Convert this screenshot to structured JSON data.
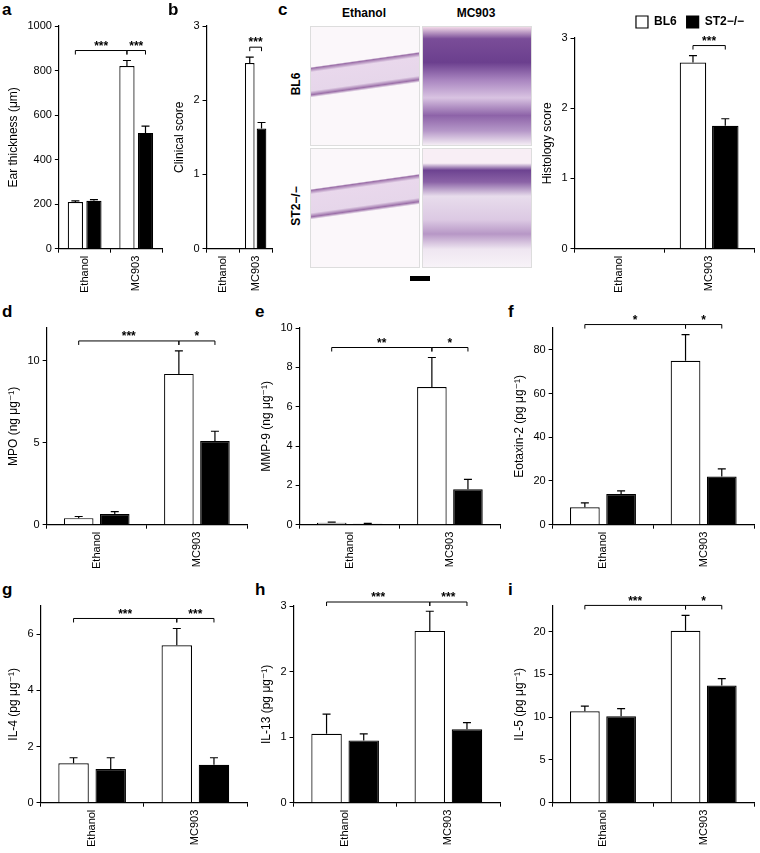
{
  "chart_data": [
    {
      "type": "bar",
      "panel": "a",
      "ylabel": "Ear thickness (μm)",
      "categories": [
        "Ethanol",
        "MC903"
      ],
      "series": [
        {
          "name": "BL6",
          "color": "#ffffff",
          "values": [
            210,
            820
          ],
          "errors": [
            5,
            25
          ]
        },
        {
          "name": "ST2−/−",
          "color": "#000000",
          "values": [
            215,
            520
          ],
          "errors": [
            5,
            30
          ]
        }
      ],
      "ylim": [
        0,
        1000
      ],
      "yticks": [
        0,
        200,
        400,
        600,
        800,
        1000
      ],
      "grid": false,
      "significance": [
        {
          "from": [
            "Ethanol",
            "BL6"
          ],
          "to": [
            "MC903",
            "BL6"
          ],
          "label": "***"
        },
        {
          "from": [
            "MC903",
            "BL6"
          ],
          "to": [
            "MC903",
            "ST2−/−"
          ],
          "label": "***"
        }
      ]
    },
    {
      "type": "bar",
      "panel": "b",
      "ylabel": "Clinical score",
      "categories": [
        "Ethanol",
        "MC903"
      ],
      "series": [
        {
          "name": "BL6",
          "color": "#ffffff",
          "values": [
            0,
            2.5
          ],
          "errors": [
            0,
            0.08
          ]
        },
        {
          "name": "ST2−/−",
          "color": "#000000",
          "values": [
            0,
            1.62
          ],
          "errors": [
            0,
            0.08
          ]
        }
      ],
      "ylim": [
        0,
        3
      ],
      "yticks": [
        0,
        1,
        2,
        3
      ],
      "grid": false,
      "significance": [
        {
          "from": [
            "MC903",
            "BL6"
          ],
          "to": [
            "MC903",
            "ST2−/−"
          ],
          "label": "***"
        }
      ]
    },
    {
      "type": "bar",
      "ylabel": "Histology score",
      "categories": [
        "Ethanol",
        "MC903"
      ],
      "legend": "top-right",
      "series": [
        {
          "name": "BL6",
          "color": "#ffffff",
          "values": [
            0,
            2.65
          ],
          "errors": [
            0,
            0.1
          ]
        },
        {
          "name": "ST2−/−",
          "color": "#000000",
          "values": [
            0,
            1.75
          ],
          "errors": [
            0,
            0.1
          ]
        }
      ],
      "ylim": [
        0,
        3
      ],
      "yticks": [
        0,
        1,
        2,
        3
      ],
      "grid": false,
      "significance": [
        {
          "from": [
            "MC903",
            "BL6"
          ],
          "to": [
            "MC903",
            "ST2−/−"
          ],
          "label": "***"
        }
      ]
    },
    {
      "type": "bar",
      "panel": "d",
      "ylabel": "MPO (ng μg⁻¹)",
      "categories": [
        "Ethanol",
        "MC903"
      ],
      "series": [
        {
          "name": "BL6",
          "color": "#ffffff",
          "values": [
            0.4,
            9.2
          ],
          "errors": [
            0.1,
            1.4
          ]
        },
        {
          "name": "ST2−/−",
          "color": "#000000",
          "values": [
            0.65,
            5.1
          ],
          "errors": [
            0.15,
            0.6
          ]
        }
      ],
      "ylim": [
        0,
        12
      ],
      "yticks": [
        0,
        5,
        10
      ],
      "grid": false,
      "significance": [
        {
          "from": [
            "Ethanol",
            "BL6"
          ],
          "to": [
            "MC903",
            "BL6"
          ],
          "label": "***"
        },
        {
          "from": [
            "MC903",
            "BL6"
          ],
          "to": [
            "MC903",
            "ST2−/−"
          ],
          "label": "*"
        }
      ]
    },
    {
      "type": "bar",
      "panel": "e",
      "ylabel": "MMP-9 (ng μg⁻¹)",
      "categories": [
        "Ethanol",
        "MC903"
      ],
      "series": [
        {
          "name": "BL6",
          "color": "#ffffff",
          "values": [
            0.1,
            7.0
          ],
          "errors": [
            0.03,
            1.5
          ]
        },
        {
          "name": "ST2−/−",
          "color": "#000000",
          "values": [
            0.05,
            1.8
          ],
          "errors": [
            0.02,
            0.5
          ]
        }
      ],
      "ylim": [
        0,
        10
      ],
      "yticks": [
        0,
        2,
        4,
        6,
        8,
        10
      ],
      "grid": false,
      "significance": [
        {
          "from": [
            "Ethanol",
            "BL6"
          ],
          "to": [
            "MC903",
            "BL6"
          ],
          "label": "**"
        },
        {
          "from": [
            "MC903",
            "BL6"
          ],
          "to": [
            "MC903",
            "ST2−/−"
          ],
          "label": "*"
        }
      ]
    },
    {
      "type": "bar",
      "panel": "f",
      "ylabel": "Eotaxin-2 (pg μg⁻¹)",
      "categories": [
        "Ethanol",
        "MC903"
      ],
      "series": [
        {
          "name": "BL6",
          "color": "#ffffff",
          "values": [
            8,
            75
          ],
          "errors": [
            2,
            12
          ]
        },
        {
          "name": "ST2−/−",
          "color": "#000000",
          "values": [
            14,
            22
          ],
          "errors": [
            1.5,
            3.5
          ]
        }
      ],
      "ylim": [
        0,
        90
      ],
      "yticks": [
        0,
        20,
        40,
        60,
        80
      ],
      "grid": false,
      "significance": [
        {
          "from": [
            "Ethanol",
            "BL6"
          ],
          "to": [
            "MC903",
            "BL6"
          ],
          "label": "*"
        },
        {
          "from": [
            "MC903",
            "BL6"
          ],
          "to": [
            "MC903",
            "ST2−/−"
          ],
          "label": "*"
        }
      ]
    },
    {
      "type": "bar",
      "panel": "g",
      "ylabel": "IL-4 (pg μg⁻¹)",
      "categories": [
        "Ethanol",
        "MC903"
      ],
      "series": [
        {
          "name": "BL6",
          "color": "#ffffff",
          "values": [
            1.4,
            5.6
          ],
          "errors": [
            0.2,
            0.6
          ]
        },
        {
          "name": "ST2−/−",
          "color": "#000000",
          "values": [
            1.2,
            1.35
          ],
          "errors": [
            0.4,
            0.25
          ]
        }
      ],
      "ylim": [
        0,
        7
      ],
      "yticks": [
        0,
        2,
        4,
        6
      ],
      "grid": false,
      "significance": [
        {
          "from": [
            "Ethanol",
            "BL6"
          ],
          "to": [
            "MC903",
            "BL6"
          ],
          "label": "***"
        },
        {
          "from": [
            "MC903",
            "BL6"
          ],
          "to": [
            "MC903",
            "ST2−/−"
          ],
          "label": "***"
        }
      ]
    },
    {
      "type": "bar",
      "panel": "h",
      "ylabel": "IL-13 (pg μg⁻¹)",
      "categories": [
        "Ethanol",
        "MC903"
      ],
      "series": [
        {
          "name": "BL6",
          "color": "#ffffff",
          "values": [
            1.05,
            2.62
          ],
          "errors": [
            0.3,
            0.3
          ]
        },
        {
          "name": "ST2−/−",
          "color": "#000000",
          "values": [
            0.95,
            1.12
          ],
          "errors": [
            0.1,
            0.1
          ]
        }
      ],
      "ylim": [
        0,
        3
      ],
      "yticks": [
        0,
        1,
        2,
        3
      ],
      "grid": false,
      "significance": [
        {
          "from": [
            "Ethanol",
            "BL6"
          ],
          "to": [
            "MC903",
            "BL6"
          ],
          "label": "***"
        },
        {
          "from": [
            "MC903",
            "BL6"
          ],
          "to": [
            "MC903",
            "ST2−/−"
          ],
          "label": "***"
        }
      ]
    },
    {
      "type": "bar",
      "panel": "i",
      "ylabel": "IL-5 (pg μg⁻¹)",
      "categories": [
        "Ethanol",
        "MC903"
      ],
      "series": [
        {
          "name": "BL6",
          "color": "#ffffff",
          "values": [
            10.7,
            20.1
          ],
          "errors": [
            0.6,
            1.8
          ]
        },
        {
          "name": "ST2−/−",
          "color": "#000000",
          "values": [
            10.1,
            13.7
          ],
          "errors": [
            0.9,
            0.8
          ]
        }
      ],
      "ylim": [
        0,
        23
      ],
      "yticks": [
        0,
        5,
        10,
        15,
        20
      ],
      "grid": false,
      "significance": [
        {
          "from": [
            "Ethanol",
            "BL6"
          ],
          "to": [
            "MC903",
            "BL6"
          ],
          "label": "***"
        },
        {
          "from": [
            "MC903",
            "BL6"
          ],
          "to": [
            "MC903",
            "ST2−/−"
          ],
          "label": "*"
        }
      ]
    }
  ],
  "histology": {
    "panel": "c",
    "columns": [
      "Ethanol",
      "MC903"
    ],
    "rows": [
      "BL6",
      "ST2−/−"
    ]
  }
}
